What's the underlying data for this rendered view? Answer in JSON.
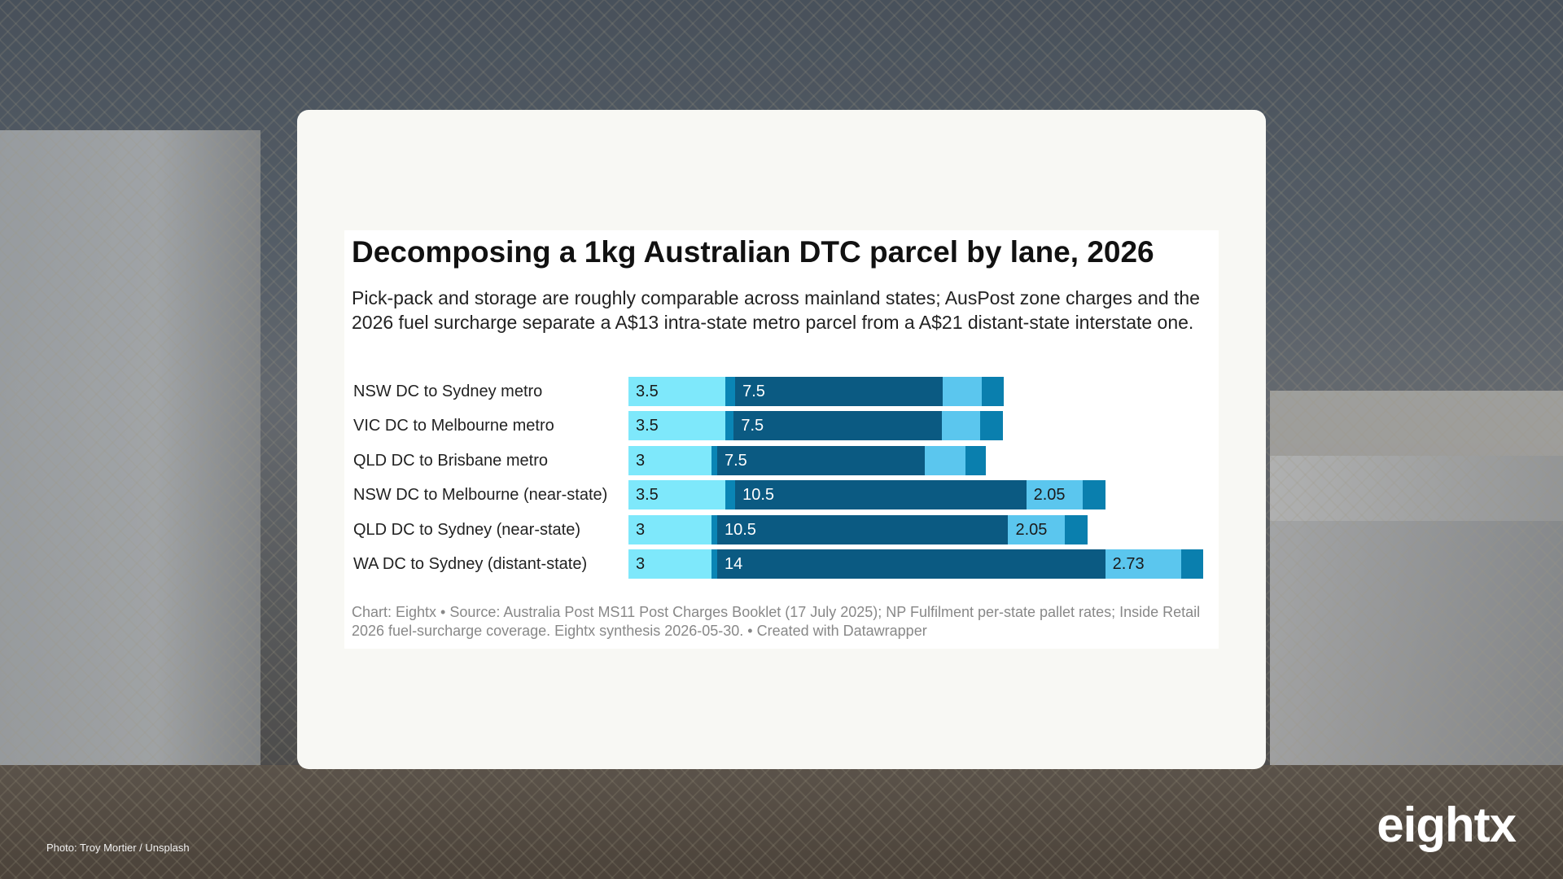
{
  "background": {
    "photo_credit": "Photo: Troy Mortier / Unsplash"
  },
  "brand": {
    "logo_text": "eightx"
  },
  "chart": {
    "title": "Decomposing a 1kg Australian DTC parcel by lane, 2026",
    "subtitle": "Pick-pack and storage are roughly comparable across mainland states; AusPost zone charges and the 2026 fuel surcharge separate a A$13 intra-state metro parcel from a A$21 distant-state interstate one.",
    "footer": "Chart: Eightx • Source: Australia Post MS11 Post Charges Booklet (17 July 2025); NP Fulfilment per-state pallet rates; Inside Retail 2026 fuel-surcharge coverage. Eightx synthesis 2026-05-30. • Created with Datawrapper"
  },
  "colors": {
    "seg1": "#7ee8fb",
    "seg2": "#0a85b5",
    "seg3": "#0b5a82",
    "seg4": "#5bc6ee",
    "seg5": "#0a7fae",
    "dark_text": "#1a1a1a",
    "light_text": "#ffffff"
  },
  "chart_data": {
    "type": "bar",
    "stacked": true,
    "orientation": "horizontal",
    "categories": [
      "NSW DC to Sydney metro",
      "VIC DC to Melbourne metro",
      "QLD DC to Brisbane metro",
      "NSW DC to Melbourne (near-state)",
      "QLD DC to Sydney (near-state)",
      "WA DC to Sydney (distant-state)"
    ],
    "series": [
      {
        "values": [
          3.5,
          3.5,
          3,
          3.5,
          3,
          3
        ]
      },
      {
        "values": [
          0.35,
          0.3,
          0.2,
          0.35,
          0.2,
          0.2
        ]
      },
      {
        "values": [
          7.5,
          7.5,
          7.5,
          10.5,
          10.5,
          14
        ]
      },
      {
        "values": [
          1.4,
          1.4,
          1.45,
          2.05,
          2.05,
          2.73
        ]
      },
      {
        "values": [
          0.8,
          0.8,
          0.75,
          0.8,
          0.8,
          0.8
        ]
      }
    ],
    "data_labels": [
      [
        "3.5",
        "",
        "7.5",
        "",
        ""
      ],
      [
        "3.5",
        "",
        "7.5",
        "",
        ""
      ],
      [
        "3",
        "",
        "7.5",
        "",
        ""
      ],
      [
        "3.5",
        "",
        "10.5",
        "2.05",
        ""
      ],
      [
        "3",
        "",
        "10.5",
        "2.05",
        ""
      ],
      [
        "3",
        "",
        "14",
        "2.73",
        ""
      ]
    ],
    "xlim": [
      0,
      21
    ],
    "grid": false
  }
}
